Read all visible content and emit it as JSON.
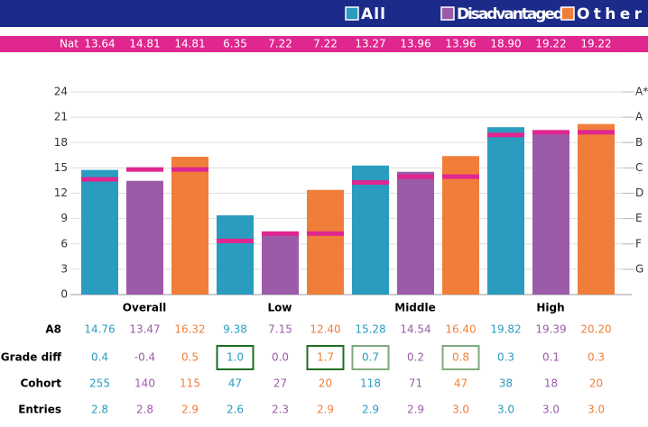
{
  "chart_data": {
    "type": "bar",
    "categories": [
      "Overall",
      "Low",
      "Middle",
      "High"
    ],
    "series": [
      {
        "name": "All",
        "color": "#2a9cc0",
        "values": [
          14.76,
          9.38,
          15.28,
          19.82
        ],
        "value_labels": [
          "14.76",
          "9.38",
          "15.28",
          "19.82"
        ]
      },
      {
        "name": "Disadvantaged",
        "color": "#9c5ba9",
        "values": [
          13.47,
          7.15,
          14.54,
          19.39
        ],
        "value_labels": [
          "13.47",
          "7.15",
          "14.54",
          "19.39"
        ]
      },
      {
        "name": "Other",
        "color": "#f07e3a",
        "values": [
          16.32,
          12.4,
          16.4,
          20.2
        ],
        "value_labels": [
          "16.32",
          "12.40",
          "16.40",
          "20.20"
        ]
      }
    ],
    "national": {
      "name": "Nat",
      "color": "#e0268f",
      "values": [
        13.64,
        14.81,
        14.81,
        6.35,
        7.22,
        7.22,
        13.27,
        13.96,
        13.96,
        18.9,
        19.22,
        19.22
      ],
      "value_labels": [
        "13.64",
        "14.81",
        "14.81",
        "6.35",
        "7.22",
        "7.22",
        "13.27",
        "13.96",
        "13.96",
        "18.90",
        "19.22",
        "19.22"
      ]
    },
    "ylim": [
      0,
      24
    ],
    "yticks": [
      0,
      3,
      6,
      9,
      12,
      15,
      18,
      21,
      24
    ],
    "y2lim": [
      0,
      24
    ],
    "y2ticks": [
      {
        "value": 3,
        "label": "G"
      },
      {
        "value": 6,
        "label": "F"
      },
      {
        "value": 9,
        "label": "E"
      },
      {
        "value": 12,
        "label": "D"
      },
      {
        "value": 15,
        "label": "C"
      },
      {
        "value": 18,
        "label": "B"
      },
      {
        "value": 21,
        "label": "A"
      },
      {
        "value": 24,
        "label": "A*"
      }
    ],
    "grid": true,
    "a8_label": "A8",
    "table": {
      "rows": [
        {
          "label": "Grade diff",
          "cells": [
            "0.4",
            "-0.4",
            "0.5",
            "1.0",
            "0.0",
            "1.7",
            "0.7",
            "0.2",
            "0.8",
            "0.3",
            "0.1",
            "0.3"
          ],
          "highlights": [
            {
              "index": 3,
              "color": "#1f6e22"
            },
            {
              "index": 5,
              "color": "#1f6e22"
            },
            {
              "index": 6,
              "color": "#7fa97f"
            },
            {
              "index": 8,
              "color": "#7fa97f"
            }
          ]
        },
        {
          "label": "Cohort",
          "cells": [
            "255",
            "140",
            "115",
            "47",
            "27",
            "20",
            "118",
            "71",
            "47",
            "38",
            "18",
            "20"
          ]
        },
        {
          "label": "Entries",
          "cells": [
            "2.8",
            "2.8",
            "2.9",
            "2.6",
            "2.3",
            "2.9",
            "2.9",
            "2.9",
            "3.0",
            "3.0",
            "3.0",
            "3.0"
          ]
        }
      ]
    }
  }
}
